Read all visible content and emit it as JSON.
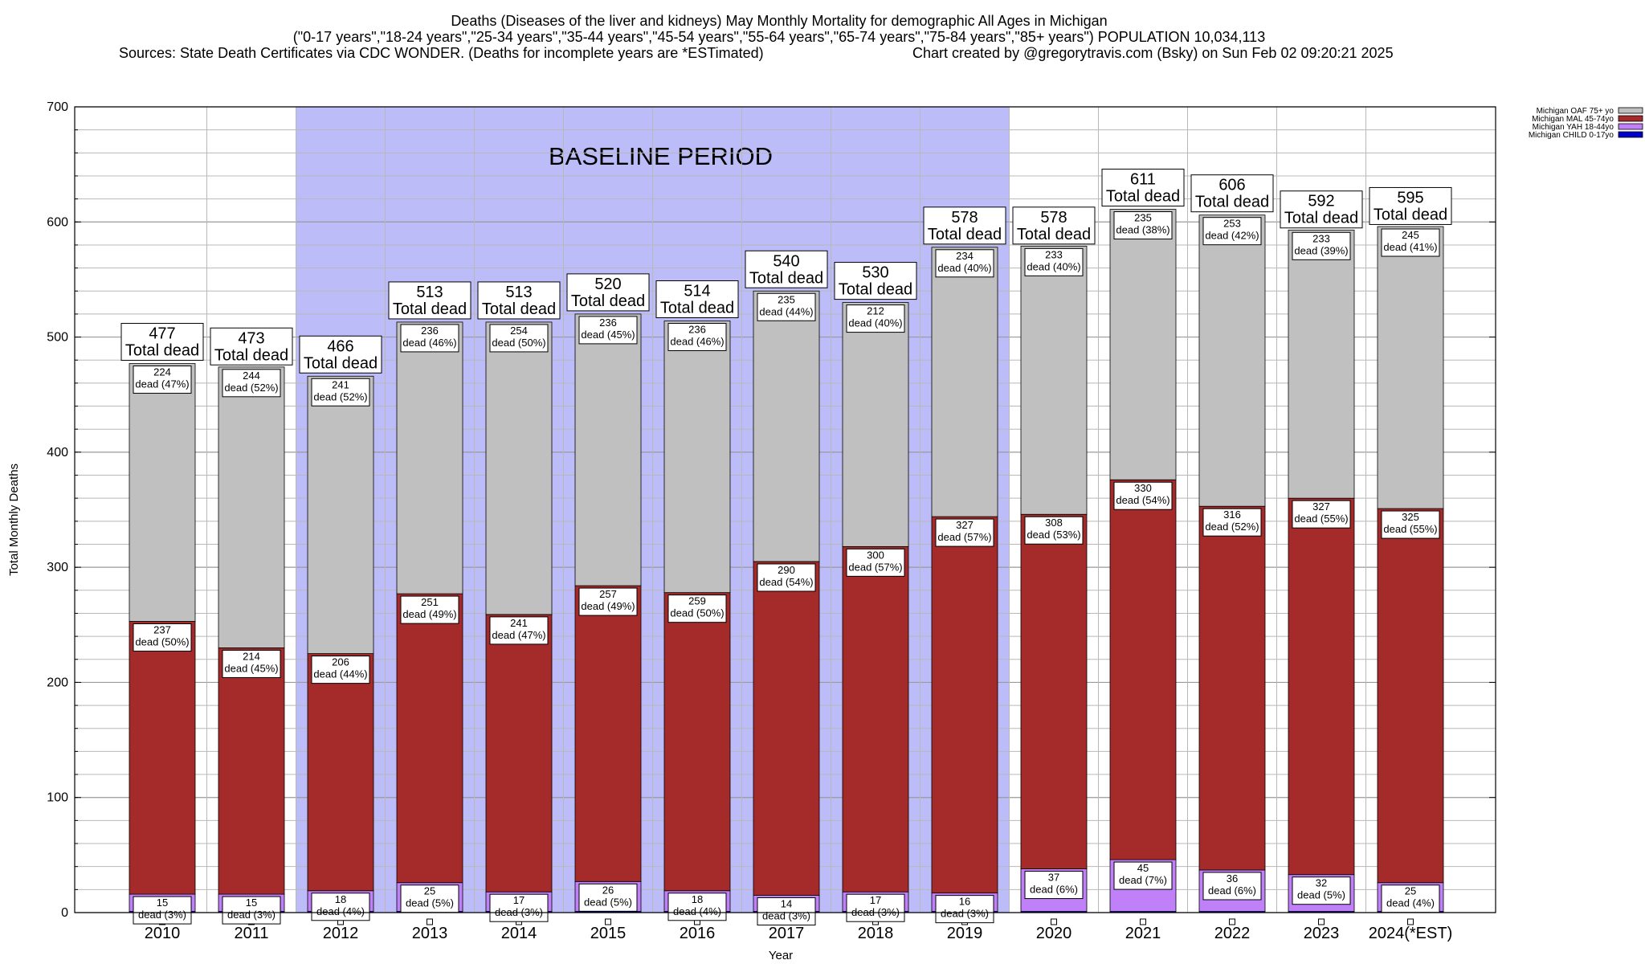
{
  "header": {
    "line1": "Deaths (Diseases of the liver and kidneys) May Monthly Mortality for demographic All Ages in Michigan",
    "line2": "(\"0-17 years\",\"18-24 years\",\"25-34 years\",\"35-44 years\",\"45-54 years\",\"55-64 years\",\"65-74 years\",\"75-84 years\",\"85+ years\") POPULATION 10,034,113",
    "line3_left": "Sources: State Death Certificates via CDC WONDER. (Deaths for incomplete years are *ESTimated)",
    "line3_right": "Chart created by @gregorytravis.com (Bsky) on Sun Feb 02 09:20:21 2025"
  },
  "chart_data": {
    "type": "bar",
    "stacked": true,
    "xlabel": "Year",
    "ylabel": "Total Monthly Deaths",
    "ylim": [
      0,
      700
    ],
    "yticks": [
      0,
      100,
      200,
      300,
      400,
      500,
      600,
      700
    ],
    "grid": true,
    "legend_placement": "top-right",
    "baseline_annotation": {
      "text": "BASELINE PERIOD",
      "from": "2012",
      "to": "2019"
    },
    "total_suffix": "Total dead",
    "categories": [
      "2010",
      "2011",
      "2012",
      "2013",
      "2014",
      "2015",
      "2016",
      "2017",
      "2018",
      "2019",
      "2020",
      "2021",
      "2022",
      "2023",
      "2024(*EST)"
    ],
    "series": [
      {
        "name": "Michigan CHILD 0-17yo",
        "color": "#0000cc",
        "values": [
          1,
          1,
          1,
          1,
          1,
          1,
          1,
          1,
          1,
          1,
          1,
          1,
          1,
          1,
          1
        ],
        "labels": [
          "",
          "",
          "",
          "",
          "",
          "",
          "",
          "",
          "",
          "",
          "",
          "",
          "",
          "",
          ""
        ]
      },
      {
        "name": "Michigan YAH 18-44yo",
        "color": "#c080f8",
        "values": [
          15,
          15,
          18,
          25,
          17,
          26,
          18,
          14,
          17,
          16,
          37,
          45,
          36,
          32,
          25
        ],
        "labels": [
          "dead (3%)",
          "dead (3%)",
          "dead (4%)",
          "dead (5%)",
          "dead (3%)",
          "dead (5%)",
          "dead (4%)",
          "dead (3%)",
          "dead (3%)",
          "dead (3%)",
          "dead (6%)",
          "dead (7%)",
          "dead (6%)",
          "dead (5%)",
          "dead (4%)"
        ]
      },
      {
        "name": "Michigan MAL 45-74yo",
        "color": "#a52a2a",
        "values": [
          237,
          214,
          206,
          251,
          241,
          257,
          259,
          290,
          300,
          327,
          308,
          330,
          316,
          327,
          325
        ],
        "labels": [
          "dead (50%)",
          "dead (45%)",
          "dead (44%)",
          "dead (49%)",
          "dead (47%)",
          "dead (49%)",
          "dead (50%)",
          "dead (54%)",
          "dead (57%)",
          "dead (57%)",
          "dead (53%)",
          "dead (54%)",
          "dead (52%)",
          "dead (55%)",
          "dead (55%)"
        ]
      },
      {
        "name": "Michigan OAF 75+ yo",
        "color": "#c0c0c0",
        "values": [
          224,
          244,
          241,
          236,
          254,
          236,
          236,
          235,
          212,
          234,
          233,
          235,
          253,
          233,
          245
        ],
        "labels": [
          "dead (47%)",
          "dead (52%)",
          "dead (52%)",
          "dead (46%)",
          "dead (50%)",
          "dead (45%)",
          "dead (46%)",
          "dead (44%)",
          "dead (40%)",
          "dead (40%)",
          "dead (40%)",
          "dead (38%)",
          "dead (42%)",
          "dead (39%)",
          "dead (41%)"
        ]
      }
    ],
    "totals": [
      477,
      473,
      466,
      513,
      513,
      520,
      514,
      540,
      530,
      578,
      578,
      611,
      606,
      592,
      595
    ]
  }
}
